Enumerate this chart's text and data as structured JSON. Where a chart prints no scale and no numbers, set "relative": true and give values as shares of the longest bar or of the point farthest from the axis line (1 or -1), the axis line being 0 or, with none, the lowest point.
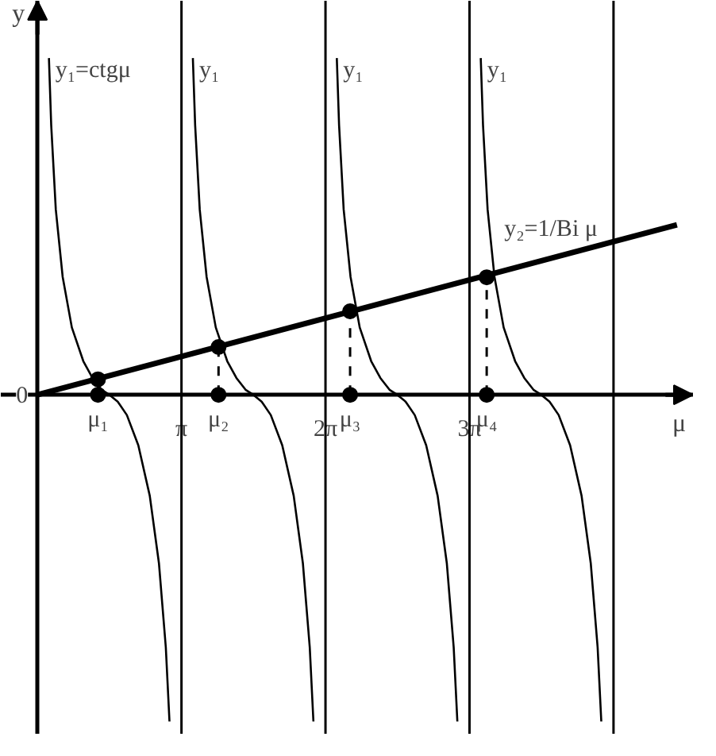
{
  "chart_data": {
    "type": "line",
    "relative": true,
    "xlabel": "μ",
    "ylabel": "y",
    "xlim": [
      -0.8,
      14.3
    ],
    "xticks": [
      {
        "value": 3.1416,
        "label": "π"
      },
      {
        "value": 6.2832,
        "label": "2π"
      },
      {
        "value": 9.4248,
        "label": "3π"
      }
    ],
    "marker": "none",
    "line_style": "solid",
    "ref_lines": [
      {
        "axis": "x",
        "value": 3.1416,
        "label": null,
        "color": "#000000"
      },
      {
        "axis": "x",
        "value": 6.2832,
        "label": null,
        "color": "#000000"
      },
      {
        "axis": "x",
        "value": 9.4248,
        "label": null,
        "color": "#000000"
      },
      {
        "axis": "x",
        "value": 12.5664,
        "label": null,
        "color": "#000000"
      }
    ],
    "series": [
      {
        "color": "#000000",
        "x": [
          0.25,
          0.3,
          0.4,
          0.55,
          0.75,
          1.0,
          1.2,
          1.4,
          1.57,
          1.75,
          1.95,
          2.2,
          2.45,
          2.65,
          2.8,
          2.88
        ],
        "values": [
          1.0,
          0.8,
          0.55,
          0.35,
          0.2,
          0.1,
          0.05,
          0.015,
          0,
          -0.02,
          -0.06,
          -0.15,
          -0.3,
          -0.5,
          -0.75,
          -0.97
        ]
      },
      {
        "color": "#000000",
        "x": [
          3.39,
          3.44,
          3.54,
          3.69,
          3.89,
          4.14,
          4.34,
          4.54,
          4.71,
          4.89,
          5.09,
          5.34,
          5.59,
          5.79,
          5.94,
          6.02
        ],
        "values": [
          1.0,
          0.8,
          0.55,
          0.35,
          0.2,
          0.1,
          0.05,
          0.015,
          0,
          -0.02,
          -0.06,
          -0.15,
          -0.3,
          -0.5,
          -0.75,
          -0.97
        ]
      },
      {
        "color": "#000000",
        "x": [
          6.53,
          6.58,
          6.68,
          6.83,
          7.03,
          7.28,
          7.48,
          7.68,
          7.85,
          8.03,
          8.23,
          8.48,
          8.73,
          8.93,
          9.08,
          9.16
        ],
        "values": [
          1.0,
          0.8,
          0.55,
          0.35,
          0.2,
          0.1,
          0.05,
          0.015,
          0,
          -0.02,
          -0.06,
          -0.15,
          -0.3,
          -0.5,
          -0.75,
          -0.97
        ]
      },
      {
        "color": "#000000",
        "x": [
          9.67,
          9.72,
          9.82,
          9.97,
          10.17,
          10.42,
          10.62,
          10.82,
          10.99,
          11.17,
          11.37,
          11.62,
          11.87,
          12.07,
          12.22,
          12.3
        ],
        "values": [
          1.0,
          0.8,
          0.55,
          0.35,
          0.2,
          0.1,
          0.05,
          0.015,
          0,
          -0.02,
          -0.06,
          -0.15,
          -0.3,
          -0.5,
          -0.75,
          -0.97
        ]
      },
      {
        "color": "#000000",
        "x": [
          0,
          13.95
        ],
        "values": [
          0,
          0.505
        ]
      },
      {
        "type": "lollipop",
        "color": "#000000",
        "marker": "circle",
        "line_style": "dashed",
        "x": [
          1.32,
          3.95,
          6.82,
          9.8
        ],
        "values": [
          0.046,
          0.142,
          0.248,
          0.349
        ]
      },
      {
        "type": "scatter",
        "color": "#000000",
        "marker": "circle",
        "x": [
          1.32,
          3.95,
          6.82,
          9.8
        ],
        "values": [
          0,
          0,
          0,
          0
        ]
      }
    ],
    "annotations": [
      {
        "text": "y₁=ctgμ",
        "x": 0.25,
        "y": 1.0
      },
      {
        "text": "y₁",
        "x": 3.39,
        "y": 1.0
      },
      {
        "text": "y₁",
        "x": 6.53,
        "y": 1.0
      },
      {
        "text": "y₁",
        "x": 9.67,
        "y": 1.0
      },
      {
        "text": "y₂=1/Bi μ",
        "x": 11.2,
        "y": 0.405
      },
      {
        "text": "0",
        "x": 0,
        "y": 0
      },
      {
        "text": "μ₁",
        "x": 1.32,
        "y": 0
      },
      {
        "text": "μ₂",
        "x": 3.95,
        "y": 0
      },
      {
        "text": "μ₃",
        "x": 6.82,
        "y": 0
      },
      {
        "text": "μ₄",
        "x": 9.8,
        "y": 0
      }
    ]
  }
}
